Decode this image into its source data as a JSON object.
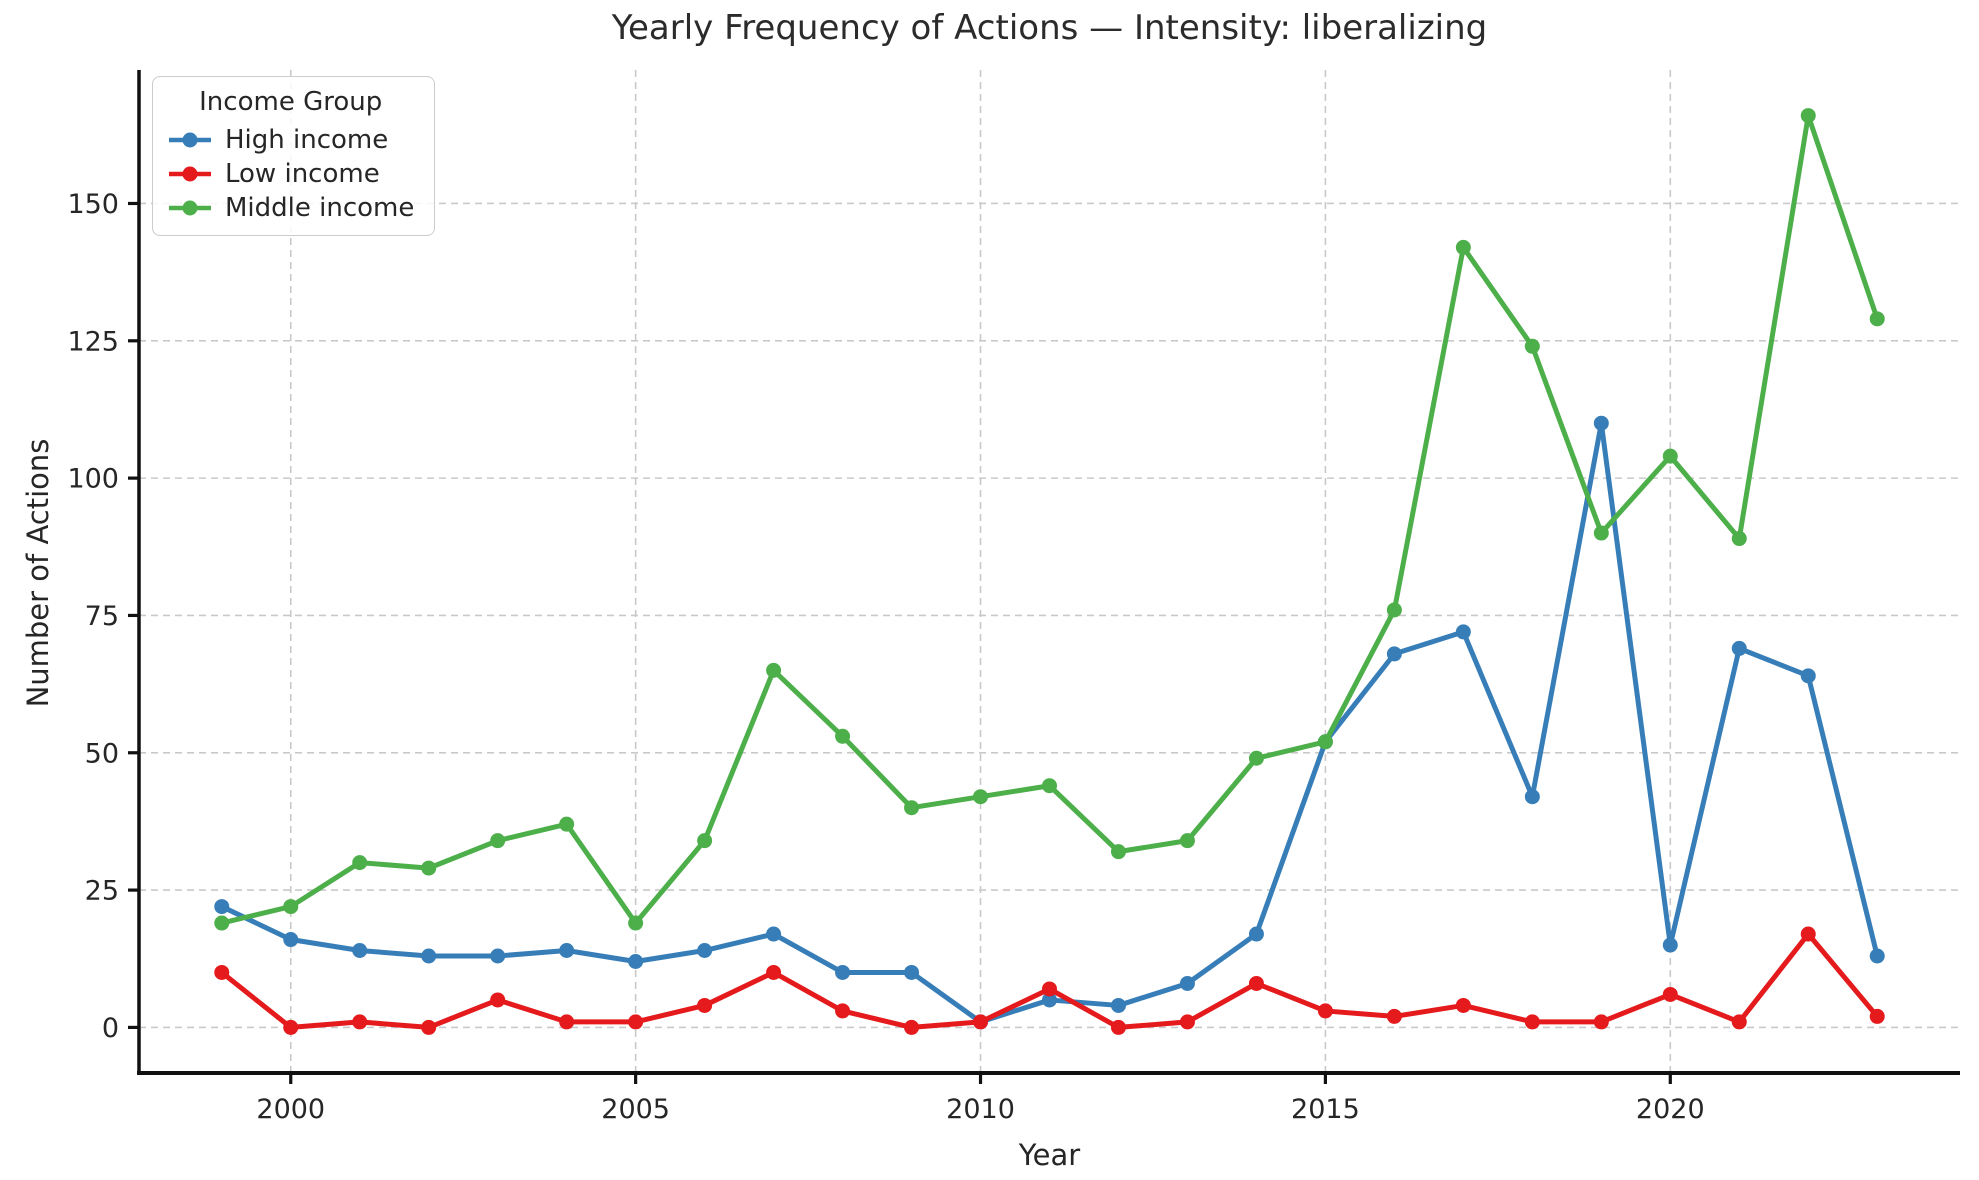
{
  "title": "Yearly Frequency of Actions — Intensity: liberalizing",
  "chart_data": {
    "type": "line",
    "title": "Yearly Frequency of Actions — Intensity: liberalizing",
    "xlabel": "Year",
    "ylabel": "Number of Actions",
    "legend_title": "Income Group",
    "legend_position": "upper left",
    "grid": true,
    "x": [
      1999,
      2000,
      2001,
      2002,
      2003,
      2004,
      2005,
      2006,
      2007,
      2008,
      2009,
      2010,
      2011,
      2012,
      2013,
      2014,
      2015,
      2016,
      2017,
      2018,
      2019,
      2020,
      2021,
      2022,
      2023
    ],
    "series": [
      {
        "name": "High income",
        "color": "#377eb8",
        "values": [
          22,
          16,
          14,
          13,
          13,
          14,
          12,
          14,
          17,
          10,
          10,
          1,
          5,
          4,
          8,
          17,
          52,
          68,
          72,
          42,
          110,
          15,
          69,
          64,
          13
        ]
      },
      {
        "name": "Low income",
        "color": "#e41a1c",
        "values": [
          10,
          0,
          1,
          0,
          5,
          1,
          1,
          4,
          10,
          3,
          0,
          1,
          7,
          0,
          1,
          8,
          3,
          2,
          4,
          1,
          1,
          6,
          1,
          17,
          2
        ]
      },
      {
        "name": "Middle income",
        "color": "#4daf4a",
        "values": [
          19,
          22,
          30,
          29,
          34,
          37,
          19,
          34,
          65,
          53,
          40,
          42,
          44,
          32,
          34,
          49,
          52,
          76,
          142,
          124,
          90,
          104,
          89,
          166,
          129
        ]
      }
    ],
    "xticks": [
      2000,
      2005,
      2010,
      2015,
      2020
    ],
    "yticks": [
      0,
      25,
      50,
      75,
      100,
      125,
      150
    ],
    "xlim": [
      1997.8,
      2024.2
    ],
    "ylim": [
      -8.3,
      174.3
    ]
  },
  "style": {
    "grid_color": "#c9c9c9",
    "spine_color": "#111111",
    "text_color": "#262626",
    "background": "#ffffff"
  }
}
